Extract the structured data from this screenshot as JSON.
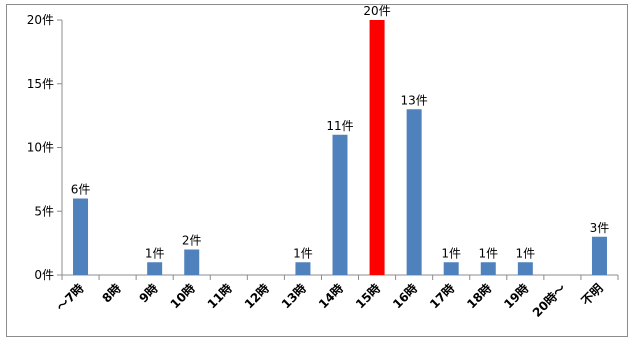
{
  "chart_data": {
    "type": "bar",
    "categories": [
      "〜7時",
      "8時",
      "9時",
      "10時",
      "11時",
      "12時",
      "13時",
      "14時",
      "15時",
      "16時",
      "17時",
      "18時",
      "19時",
      "20時〜",
      "不明"
    ],
    "values": [
      6,
      0,
      1,
      2,
      0,
      0,
      1,
      11,
      20,
      13,
      1,
      1,
      1,
      0,
      3
    ],
    "data_labels": [
      "6件",
      "",
      "1件",
      "2件",
      "",
      "",
      "1件",
      "11件",
      "20件",
      "13件",
      "1件",
      "1件",
      "1件",
      "",
      "3件"
    ],
    "y_ticks": [
      0,
      5,
      10,
      15,
      20
    ],
    "y_tick_labels": [
      "0件",
      "5件",
      "10件",
      "15件",
      "20件"
    ],
    "ylim": [
      0,
      20
    ],
    "grid": false,
    "legend": "none",
    "bar_color": "#4f81bd",
    "highlight_index": 8,
    "highlight_color": "#ff0000"
  }
}
